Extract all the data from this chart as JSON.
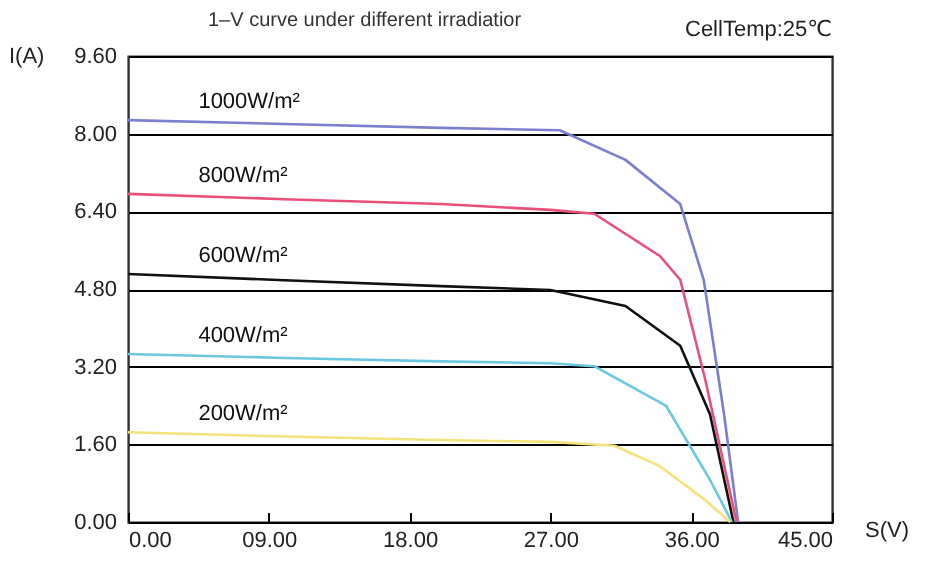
{
  "chart_data": {
    "type": "line",
    "title": "1–V curve under different irradiatior",
    "xlabel": "S(V)",
    "ylabel": "I(A)",
    "annotations": [
      "CellTemp:25℃"
    ],
    "xlim": [
      0,
      45
    ],
    "ylim": [
      0,
      9.6
    ],
    "xticks": [
      {
        "value": 0,
        "label": "0.00"
      },
      {
        "value": 9,
        "label": "09.00"
      },
      {
        "value": 18,
        "label": "18.00"
      },
      {
        "value": 27,
        "label": "27.00"
      },
      {
        "value": 36,
        "label": "36.00"
      },
      {
        "value": 45,
        "label": "45.00"
      }
    ],
    "yticks": [
      {
        "value": 0,
        "label": "0.00"
      },
      {
        "value": 1.6,
        "label": "1.60"
      },
      {
        "value": 3.2,
        "label": "3.20"
      },
      {
        "value": 4.8,
        "label": "4.80"
      },
      {
        "value": 6.4,
        "label": "6.40"
      },
      {
        "value": 8,
        "label": "8.00"
      },
      {
        "value": 9.6,
        "label": "9.60"
      }
    ],
    "grid": "y",
    "legend": false,
    "marker": "none",
    "line_style": "solid",
    "series": [
      {
        "name": "1000W/m²",
        "color": "#7b7fd0",
        "x": [
          0,
          10,
          20,
          27.6,
          31.8,
          35.3,
          36.8,
          38.1,
          39.0
        ],
        "values": [
          8.28,
          8.2,
          8.12,
          8.07,
          7.46,
          6.55,
          4.99,
          2.22,
          0
        ]
      },
      {
        "name": "800W/m²",
        "color": "#e8507a",
        "x": [
          0,
          10,
          20,
          27,
          29.8,
          34.0,
          35.3,
          36.9,
          38.9
        ],
        "values": [
          6.76,
          6.65,
          6.55,
          6.43,
          6.35,
          5.48,
          4.99,
          2.93,
          0
        ]
      },
      {
        "name": "600W/m²",
        "color": "#111111",
        "x": [
          0,
          10,
          20,
          27,
          31.8,
          35.3,
          37.2,
          38.7
        ],
        "values": [
          5.11,
          4.98,
          4.86,
          4.78,
          4.45,
          3.63,
          2.22,
          0
        ]
      },
      {
        "name": "400W/m²",
        "color": "#6cc8e0",
        "x": [
          0,
          10,
          20,
          27,
          29.8,
          34.4,
          37.2,
          38.6
        ],
        "values": [
          3.46,
          3.38,
          3.31,
          3.27,
          3.21,
          2.39,
          0.87,
          0
        ]
      },
      {
        "name": "200W/m²",
        "color": "#f5e27a",
        "x": [
          0,
          10,
          20,
          27,
          31.1,
          34.0,
          36.9,
          38.5
        ],
        "values": [
          1.85,
          1.76,
          1.69,
          1.65,
          1.57,
          1.15,
          0.45,
          0
        ]
      }
    ]
  }
}
